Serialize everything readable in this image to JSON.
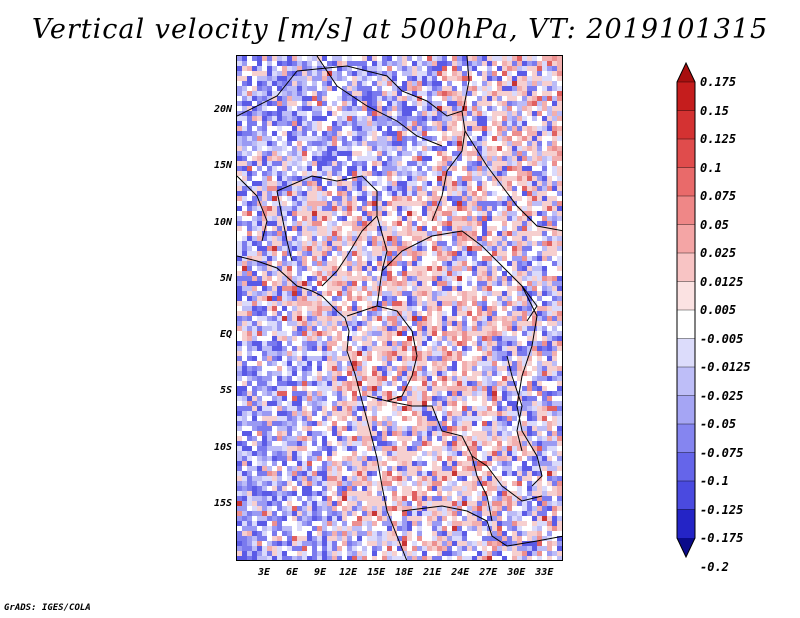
{
  "title": "Vertical velocity [m/s] at 500hPa, VT: 2019101315",
  "credit": "GrADS: IGES/COLA",
  "map": {
    "lon_range": [
      0,
      35
    ],
    "lat_range": [
      -20,
      25
    ],
    "lat_labels": [
      {
        "lat": 20,
        "text": "20N"
      },
      {
        "lat": 15,
        "text": "15N"
      },
      {
        "lat": 10,
        "text": "10N"
      },
      {
        "lat": 5,
        "text": "5N"
      },
      {
        "lat": 0,
        "text": "EQ"
      },
      {
        "lat": -5,
        "text": "5S"
      },
      {
        "lat": -10,
        "text": "10S"
      },
      {
        "lat": -15,
        "text": "15S"
      }
    ],
    "lon_labels": [
      {
        "lon": 3,
        "text": "3E"
      },
      {
        "lon": 6,
        "text": "6E"
      },
      {
        "lon": 9,
        "text": "9E"
      },
      {
        "lon": 12,
        "text": "12E"
      },
      {
        "lon": 15,
        "text": "15E"
      },
      {
        "lon": 18,
        "text": "18E"
      },
      {
        "lon": 21,
        "text": "21E"
      },
      {
        "lon": 24,
        "text": "24E"
      },
      {
        "lon": 27,
        "text": "27E"
      },
      {
        "lon": 30,
        "text": "30E"
      },
      {
        "lon": 33,
        "text": "33E"
      }
    ]
  },
  "colorbar": {
    "colors": [
      "#0b0b8a",
      "#2424c6",
      "#4a4ae0",
      "#6565ea",
      "#8585f0",
      "#a5a5f4",
      "#bebef8",
      "#dcdcfb",
      "#ffffff",
      "#fbe2e2",
      "#f8c4c4",
      "#f4a5a5",
      "#ef8787",
      "#e96a6a",
      "#e04c4c",
      "#d43232",
      "#c51d1d",
      "#a80f0f"
    ],
    "labels": [
      "0.175",
      "0.15",
      "0.125",
      "0.1",
      "0.075",
      "0.05",
      "0.025",
      "0.0125",
      "0.005",
      "-0.005",
      "-0.0125",
      "-0.025",
      "-0.05",
      "-0.075",
      "-0.1",
      "-0.125",
      "-0.175",
      "-0.2"
    ]
  }
}
